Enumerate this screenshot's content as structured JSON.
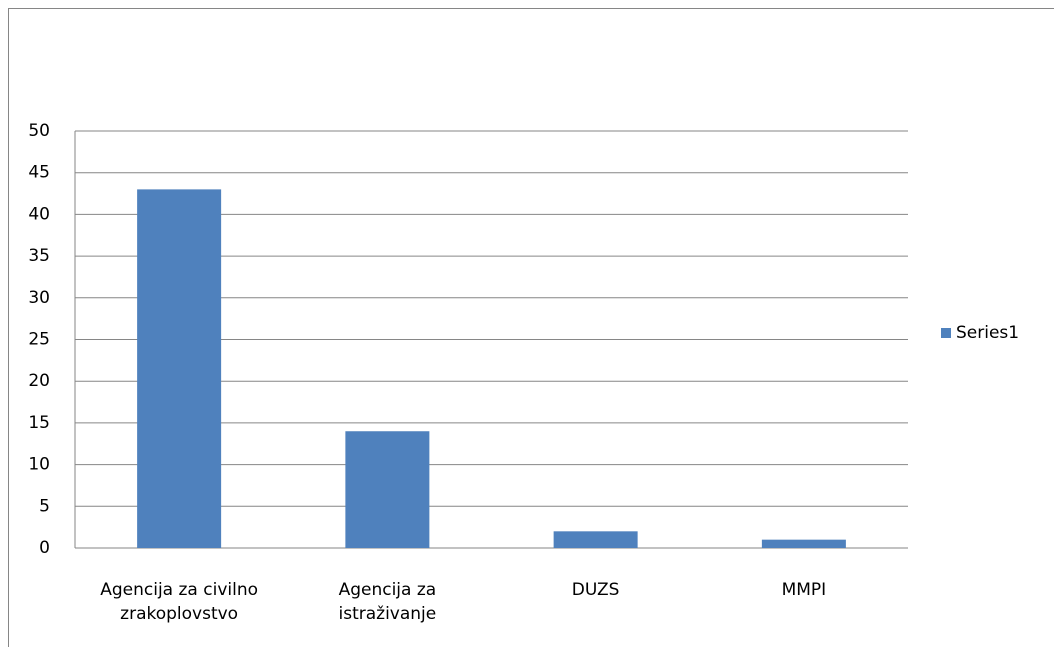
{
  "chart_data": {
    "type": "bar",
    "categories": [
      "Agencija za civilno zrakoplovstvo",
      "Agencija za istraživanje",
      "DUZS",
      "MMPI"
    ],
    "series": [
      {
        "name": "Series1",
        "color": "#4f81bd",
        "values": [
          43,
          14,
          2,
          1
        ]
      }
    ],
    "ylim": [
      0,
      50
    ],
    "yticks": [
      0,
      5,
      10,
      15,
      20,
      25,
      30,
      35,
      40,
      45,
      50
    ],
    "grid": true,
    "legend": "right"
  }
}
